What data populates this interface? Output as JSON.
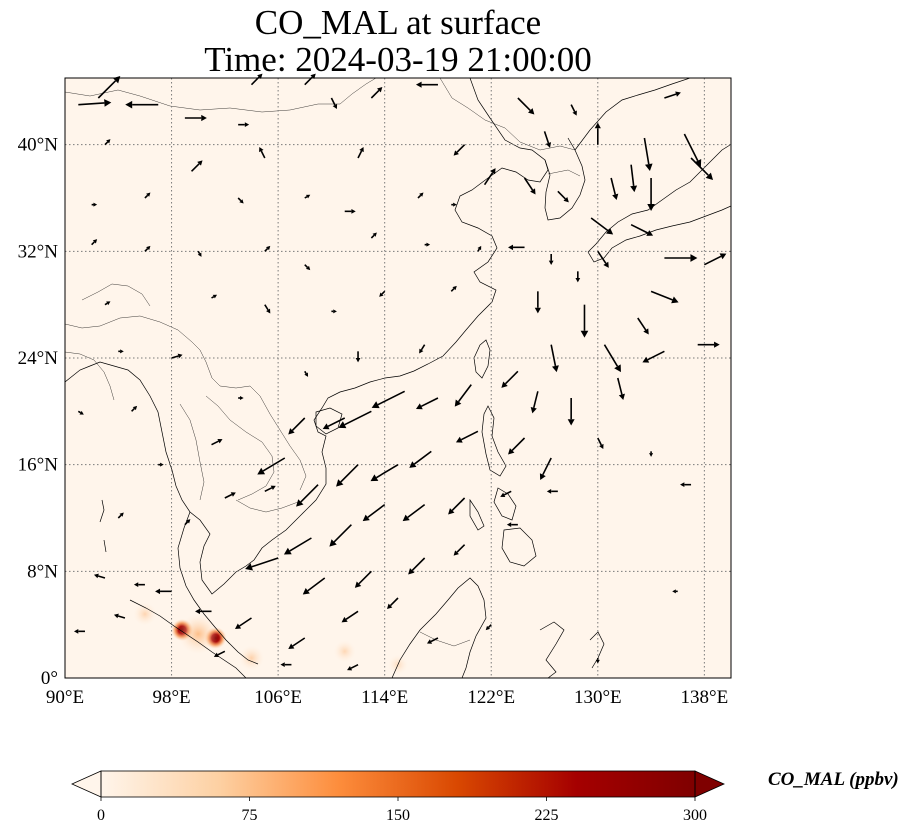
{
  "title": {
    "line1": "CO_MAL at surface",
    "line2": "Time: 2024-03-19 21:00:00"
  },
  "map": {
    "lon_range": [
      90,
      140
    ],
    "lat_range": [
      0,
      45
    ],
    "lon_ticks": [
      {
        "value": 90,
        "label": "90°E"
      },
      {
        "value": 98,
        "label": "98°E"
      },
      {
        "value": 106,
        "label": "106°E"
      },
      {
        "value": 114,
        "label": "114°E"
      },
      {
        "value": 122,
        "label": "122°E"
      },
      {
        "value": 130,
        "label": "130°E"
      },
      {
        "value": 138,
        "label": "138°E"
      }
    ],
    "lat_ticks": [
      {
        "value": 0,
        "label": "0°"
      },
      {
        "value": 8,
        "label": "8°N"
      },
      {
        "value": 16,
        "label": "16°N"
      },
      {
        "value": 24,
        "label": "24°N"
      },
      {
        "value": 32,
        "label": "32°N"
      },
      {
        "value": 40,
        "label": "40°N"
      }
    ],
    "gridlines": "dotted",
    "background_color": "#fff5eb",
    "hotspots": [
      {
        "lon": 98.8,
        "lat": 3.6,
        "value": 300
      },
      {
        "lon": 101.3,
        "lat": 3.0,
        "value": 300
      },
      {
        "lon": 100.0,
        "lat": 3.3,
        "value": 120
      },
      {
        "lon": 96.0,
        "lat": 4.8,
        "value": 35
      },
      {
        "lon": 104.0,
        "lat": 1.5,
        "value": 45
      },
      {
        "lon": 111.0,
        "lat": 2.0,
        "value": 30
      },
      {
        "lon": 115.0,
        "lat": 1.0,
        "value": 20
      }
    ]
  },
  "colorbar": {
    "min": 0,
    "max": 300,
    "ticks": [
      "0",
      "75",
      "150",
      "225",
      "300"
    ],
    "colormap": [
      "#fff5eb",
      "#fdd0a2",
      "#fd8d3c",
      "#d94801",
      "#a50000",
      "#7f0000"
    ],
    "label": "CO_MAL (ppbv)",
    "extend": "both"
  },
  "wind_vectors": [
    {
      "lon": 91,
      "lat": 43,
      "u": 3,
      "v": 0.2
    },
    {
      "lon": 92.5,
      "lat": 43.5,
      "u": 2,
      "v": 2
    },
    {
      "lon": 97,
      "lat": 43,
      "u": -3,
      "v": 0
    },
    {
      "lon": 99,
      "lat": 42,
      "u": 2,
      "v": 0
    },
    {
      "lon": 103,
      "lat": 41.5,
      "u": 1,
      "v": 0
    },
    {
      "lon": 104,
      "lat": 44.5,
      "u": 1,
      "v": 1
    },
    {
      "lon": 108,
      "lat": 44.5,
      "u": 1,
      "v": 1
    },
    {
      "lon": 110,
      "lat": 43.5,
      "u": 0.5,
      "v": -1
    },
    {
      "lon": 113,
      "lat": 43.5,
      "u": 1,
      "v": 1
    },
    {
      "lon": 118,
      "lat": 44.5,
      "u": -2,
      "v": 0
    },
    {
      "lon": 124,
      "lat": 43.5,
      "u": 1.5,
      "v": -1.5
    },
    {
      "lon": 128,
      "lat": 43,
      "u": 0.5,
      "v": -1
    },
    {
      "lon": 135,
      "lat": 43.5,
      "u": 1.5,
      "v": 0.5
    },
    {
      "lon": 93,
      "lat": 40,
      "u": 0.5,
      "v": 0.5
    },
    {
      "lon": 99.5,
      "lat": 38,
      "u": 1,
      "v": 1
    },
    {
      "lon": 105,
      "lat": 39,
      "u": -0.5,
      "v": 1
    },
    {
      "lon": 112,
      "lat": 39,
      "u": 0.5,
      "v": 1
    },
    {
      "lon": 120,
      "lat": 40,
      "u": -1,
      "v": -1
    },
    {
      "lon": 126,
      "lat": 41,
      "u": 0.5,
      "v": -1.5
    },
    {
      "lon": 130,
      "lat": 40,
      "u": 0,
      "v": 2
    },
    {
      "lon": 133.5,
      "lat": 40.5,
      "u": 0.5,
      "v": -3
    },
    {
      "lon": 136.5,
      "lat": 40.8,
      "u": 1.5,
      "v": -3
    },
    {
      "lon": 137,
      "lat": 39,
      "u": 2,
      "v": -2
    },
    {
      "lon": 132.5,
      "lat": 38.5,
      "u": 0.3,
      "v": -2.5
    },
    {
      "lon": 134,
      "lat": 37.5,
      "u": 0,
      "v": -3
    },
    {
      "lon": 131,
      "lat": 37.5,
      "u": 0.5,
      "v": -2
    },
    {
      "lon": 132.5,
      "lat": 34,
      "u": 2,
      "v": -1
    },
    {
      "lon": 129.5,
      "lat": 34.5,
      "u": 2,
      "v": -1.5
    },
    {
      "lon": 121.5,
      "lat": 37,
      "u": 1,
      "v": 1.5
    },
    {
      "lon": 124.5,
      "lat": 37.5,
      "u": 1,
      "v": -1.5
    },
    {
      "lon": 127,
      "lat": 36.5,
      "u": 1,
      "v": -1
    },
    {
      "lon": 124.5,
      "lat": 32.3,
      "u": -1.5,
      "v": 0
    },
    {
      "lon": 126.5,
      "lat": 31.8,
      "u": 0,
      "v": -1
    },
    {
      "lon": 128.5,
      "lat": 30.5,
      "u": 0,
      "v": -1
    },
    {
      "lon": 130,
      "lat": 32,
      "u": 1,
      "v": -1.5
    },
    {
      "lon": 135,
      "lat": 31.5,
      "u": 3,
      "v": 0
    },
    {
      "lon": 138,
      "lat": 31,
      "u": 2,
      "v": 1
    },
    {
      "lon": 134,
      "lat": 29,
      "u": 2.5,
      "v": -1
    },
    {
      "lon": 125.5,
      "lat": 29,
      "u": 0,
      "v": -2
    },
    {
      "lon": 129,
      "lat": 28,
      "u": 0,
      "v": -3
    },
    {
      "lon": 133,
      "lat": 27,
      "u": 1,
      "v": -1.5
    },
    {
      "lon": 137.5,
      "lat": 25,
      "u": 2,
      "v": 0
    },
    {
      "lon": 135,
      "lat": 24.5,
      "u": -2,
      "v": -1
    },
    {
      "lon": 130.5,
      "lat": 25,
      "u": 1.5,
      "v": -2.5
    },
    {
      "lon": 126.5,
      "lat": 25,
      "u": 0.5,
      "v": -2.5
    },
    {
      "lon": 131.5,
      "lat": 22.5,
      "u": 0.5,
      "v": -2
    },
    {
      "lon": 128,
      "lat": 21,
      "u": 0,
      "v": -2.5
    },
    {
      "lon": 125.5,
      "lat": 21.5,
      "u": -0.5,
      "v": -2
    },
    {
      "lon": 124,
      "lat": 23,
      "u": -1.5,
      "v": -1.5
    },
    {
      "lon": 120.5,
      "lat": 22,
      "u": -1.5,
      "v": -2
    },
    {
      "lon": 118,
      "lat": 21,
      "u": -2,
      "v": -1
    },
    {
      "lon": 115.5,
      "lat": 21.5,
      "u": -3,
      "v": -1.5
    },
    {
      "lon": 113,
      "lat": 20,
      "u": -3,
      "v": -1.5
    },
    {
      "lon": 111,
      "lat": 19.5,
      "u": -2,
      "v": -1
    },
    {
      "lon": 108,
      "lat": 19.5,
      "u": -1.5,
      "v": -1.5
    },
    {
      "lon": 106.5,
      "lat": 16.5,
      "u": -2.5,
      "v": -1.5
    },
    {
      "lon": 109,
      "lat": 14.5,
      "u": -2,
      "v": -2
    },
    {
      "lon": 112,
      "lat": 16,
      "u": -2,
      "v": -2
    },
    {
      "lon": 115,
      "lat": 16,
      "u": -2.5,
      "v": -1.5
    },
    {
      "lon": 117.5,
      "lat": 17,
      "u": -2,
      "v": -1.5
    },
    {
      "lon": 121,
      "lat": 18.5,
      "u": -2,
      "v": -1
    },
    {
      "lon": 124.5,
      "lat": 18,
      "u": -1.5,
      "v": -1.5
    },
    {
      "lon": 126.5,
      "lat": 16.5,
      "u": -1,
      "v": -2
    },
    {
      "lon": 130,
      "lat": 18,
      "u": 0.5,
      "v": -1
    },
    {
      "lon": 134,
      "lat": 17,
      "u": 0,
      "v": -0.5
    },
    {
      "lon": 137,
      "lat": 14.5,
      "u": -1,
      "v": 0
    },
    {
      "lon": 127,
      "lat": 14,
      "u": -1,
      "v": 0
    },
    {
      "lon": 123.5,
      "lat": 14,
      "u": -1,
      "v": -0.5
    },
    {
      "lon": 120,
      "lat": 13.5,
      "u": -1.5,
      "v": -1.5
    },
    {
      "lon": 117,
      "lat": 13,
      "u": -2,
      "v": -1.5
    },
    {
      "lon": 114,
      "lat": 13,
      "u": -2,
      "v": -1.5
    },
    {
      "lon": 111.5,
      "lat": 11.5,
      "u": -2,
      "v": -2
    },
    {
      "lon": 108.5,
      "lat": 10.5,
      "u": -2.5,
      "v": -1.5
    },
    {
      "lon": 106,
      "lat": 9,
      "u": -3,
      "v": -1
    },
    {
      "lon": 109.5,
      "lat": 7.5,
      "u": -2,
      "v": -1.5
    },
    {
      "lon": 113,
      "lat": 8,
      "u": -1.5,
      "v": -1.5
    },
    {
      "lon": 117,
      "lat": 9,
      "u": -1.5,
      "v": -1.5
    },
    {
      "lon": 120,
      "lat": 10,
      "u": -1,
      "v": -1
    },
    {
      "lon": 124,
      "lat": 11.5,
      "u": -1,
      "v": 0
    },
    {
      "lon": 115,
      "lat": 6,
      "u": -1,
      "v": -1
    },
    {
      "lon": 112,
      "lat": 5,
      "u": -1.5,
      "v": -1
    },
    {
      "lon": 108,
      "lat": 3,
      "u": -1.5,
      "v": -1
    },
    {
      "lon": 104,
      "lat": 4.5,
      "u": -1.5,
      "v": -1
    },
    {
      "lon": 101,
      "lat": 5,
      "u": -1.5,
      "v": 0
    },
    {
      "lon": 98,
      "lat": 6.5,
      "u": -1.5,
      "v": 0
    },
    {
      "lon": 96,
      "lat": 7,
      "u": -1,
      "v": 0
    },
    {
      "lon": 93,
      "lat": 7.5,
      "u": -1,
      "v": 0.3
    },
    {
      "lon": 102,
      "lat": 2,
      "u": -1,
      "v": -0.5
    },
    {
      "lon": 107,
      "lat": 1,
      "u": -1,
      "v": 0
    },
    {
      "lon": 112,
      "lat": 1,
      "u": -1,
      "v": -0.5
    },
    {
      "lon": 94,
      "lat": 12,
      "u": 0.5,
      "v": 0.5
    },
    {
      "lon": 99,
      "lat": 11.5,
      "u": 0.5,
      "v": 0.5
    },
    {
      "lon": 102,
      "lat": 13.5,
      "u": 1,
      "v": 0.5
    },
    {
      "lon": 105,
      "lat": 14,
      "u": 1,
      "v": 0.5
    },
    {
      "lon": 97,
      "lat": 16,
      "u": 0.5,
      "v": 0
    },
    {
      "lon": 101,
      "lat": 17.5,
      "u": 1,
      "v": 0.5
    },
    {
      "lon": 95,
      "lat": 20,
      "u": 0.5,
      "v": 0.5
    },
    {
      "lon": 103,
      "lat": 21,
      "u": 0.5,
      "v": 0
    },
    {
      "lon": 98,
      "lat": 24,
      "u": 1,
      "v": 0.3
    },
    {
      "lon": 108,
      "lat": 23,
      "u": 0.3,
      "v": -0.5
    },
    {
      "lon": 112,
      "lat": 24.5,
      "u": 0,
      "v": -1
    },
    {
      "lon": 117,
      "lat": 25,
      "u": -0.5,
      "v": -0.8
    },
    {
      "lon": 93,
      "lat": 28,
      "u": 0.5,
      "v": 0.3
    },
    {
      "lon": 101,
      "lat": 28.5,
      "u": 0.5,
      "v": 0.3
    },
    {
      "lon": 105,
      "lat": 28,
      "u": 0.5,
      "v": -0.8
    },
    {
      "lon": 110,
      "lat": 27.5,
      "u": 0.5,
      "v": 0
    },
    {
      "lon": 114,
      "lat": 29,
      "u": -0.5,
      "v": -0.5
    },
    {
      "lon": 119,
      "lat": 29,
      "u": 0.5,
      "v": 0.5
    },
    {
      "lon": 92,
      "lat": 32.5,
      "u": 0.5,
      "v": 0.5
    },
    {
      "lon": 96,
      "lat": 32,
      "u": 0.5,
      "v": 0.5
    },
    {
      "lon": 100,
      "lat": 32,
      "u": 0.3,
      "v": -0.5
    },
    {
      "lon": 105,
      "lat": 32,
      "u": 0.5,
      "v": 0.5
    },
    {
      "lon": 108,
      "lat": 31,
      "u": 0.5,
      "v": -0.5
    },
    {
      "lon": 113,
      "lat": 33,
      "u": 0.5,
      "v": 0.5
    },
    {
      "lon": 117,
      "lat": 32.5,
      "u": 0.5,
      "v": 0
    },
    {
      "lon": 121,
      "lat": 32,
      "u": 0.3,
      "v": 0.5
    },
    {
      "lon": 92,
      "lat": 35.5,
      "u": 0.5,
      "v": 0
    },
    {
      "lon": 96,
      "lat": 36,
      "u": 0.5,
      "v": 0.5
    },
    {
      "lon": 103,
      "lat": 36,
      "u": 0.5,
      "v": -0.5
    },
    {
      "lon": 108,
      "lat": 36,
      "u": 0.5,
      "v": 0.3
    },
    {
      "lon": 111,
      "lat": 35,
      "u": 1,
      "v": 0
    },
    {
      "lon": 116.5,
      "lat": 36,
      "u": 0.5,
      "v": 0.5
    },
    {
      "lon": 119,
      "lat": 35.5,
      "u": 0.5,
      "v": 0
    },
    {
      "lon": 94,
      "lat": 24.5,
      "u": 0.5,
      "v": 0
    },
    {
      "lon": 91,
      "lat": 20,
      "u": 0.5,
      "v": -0.3
    },
    {
      "lon": 91.5,
      "lat": 3.5,
      "u": -1,
      "v": 0
    },
    {
      "lon": 94.5,
      "lat": 4.5,
      "u": -1,
      "v": 0.3
    },
    {
      "lon": 118,
      "lat": 3,
      "u": -1,
      "v": -0.5
    },
    {
      "lon": 122,
      "lat": 4,
      "u": -0.5,
      "v": -0.5
    },
    {
      "lon": 130,
      "lat": 1.5,
      "u": 0,
      "v": -0.5
    },
    {
      "lon": 136,
      "lat": 6.5,
      "u": -0.5,
      "v": 0
    }
  ]
}
